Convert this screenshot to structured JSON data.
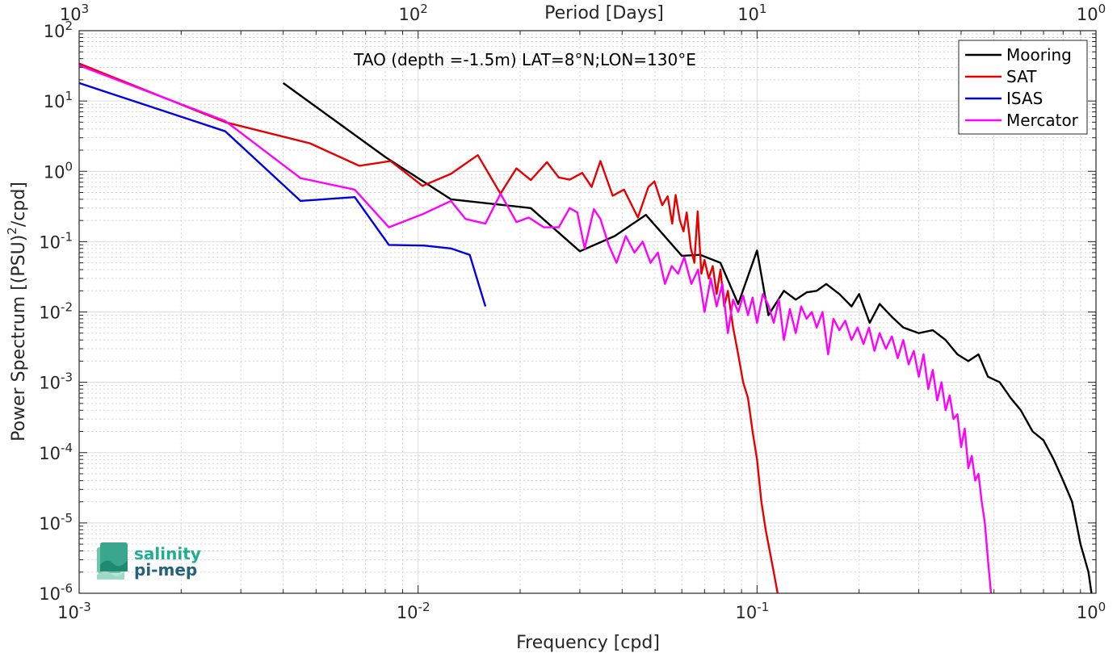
{
  "chart_data": {
    "type": "line",
    "title": "TAO (depth =-1.5m) LAT=8°N;LON=130°E",
    "xlabel": "Frequency [cpd]",
    "ylabel_main": "Power Spectrum [(PSU)",
    "ylabel_sup": "2",
    "ylabel_tail": "/cpd]",
    "top_xlabel": "Period [Days]",
    "x_scale": "log",
    "y_scale": "log",
    "xlim": [
      0.001,
      1
    ],
    "ylim": [
      1e-06,
      100
    ],
    "grid": true,
    "legend_position": "top-right",
    "x_ticks": [
      {
        "value": 0.001,
        "base": "10",
        "exp": "-3"
      },
      {
        "value": 0.01,
        "base": "10",
        "exp": "-2"
      },
      {
        "value": 0.1,
        "base": "10",
        "exp": "-1"
      },
      {
        "value": 1,
        "base": "10",
        "exp": "0"
      }
    ],
    "top_ticks": [
      {
        "value": 0.001,
        "base": "10",
        "exp": "3"
      },
      {
        "value": 0.01,
        "base": "10",
        "exp": "2"
      },
      {
        "value": 0.1,
        "base": "10",
        "exp": "1"
      },
      {
        "value": 1,
        "base": "10",
        "exp": "0"
      }
    ],
    "y_ticks": [
      {
        "value": 100,
        "base": "10",
        "exp": "2"
      },
      {
        "value": 10,
        "base": "10",
        "exp": "1"
      },
      {
        "value": 1,
        "base": "10",
        "exp": "0"
      },
      {
        "value": 0.1,
        "base": "10",
        "exp": "-1"
      },
      {
        "value": 0.01,
        "base": "10",
        "exp": "-2"
      },
      {
        "value": 0.001,
        "base": "10",
        "exp": "-3"
      },
      {
        "value": 0.0001,
        "base": "10",
        "exp": "-4"
      },
      {
        "value": 1e-05,
        "base": "10",
        "exp": "-5"
      },
      {
        "value": 1e-06,
        "base": "10",
        "exp": "-6"
      }
    ],
    "series": [
      {
        "name": "Mooring",
        "color": "#000000",
        "points": [
          [
            0.004,
            18
          ],
          [
            0.008,
            1.6
          ],
          [
            0.0125,
            0.4
          ],
          [
            0.0215,
            0.3
          ],
          [
            0.03,
            0.073
          ],
          [
            0.038,
            0.12
          ],
          [
            0.047,
            0.24
          ],
          [
            0.06,
            0.063
          ],
          [
            0.068,
            0.065
          ],
          [
            0.078,
            0.05
          ],
          [
            0.088,
            0.013
          ],
          [
            0.1,
            0.075
          ],
          [
            0.108,
            0.009
          ],
          [
            0.12,
            0.02
          ],
          [
            0.13,
            0.015
          ],
          [
            0.14,
            0.019
          ],
          [
            0.15,
            0.02
          ],
          [
            0.16,
            0.025
          ],
          [
            0.175,
            0.018
          ],
          [
            0.19,
            0.012
          ],
          [
            0.2,
            0.018
          ],
          [
            0.215,
            0.007
          ],
          [
            0.23,
            0.013
          ],
          [
            0.25,
            0.0085
          ],
          [
            0.27,
            0.006
          ],
          [
            0.3,
            0.005
          ],
          [
            0.33,
            0.0055
          ],
          [
            0.36,
            0.004
          ],
          [
            0.39,
            0.0025
          ],
          [
            0.42,
            0.002
          ],
          [
            0.45,
            0.0025
          ],
          [
            0.48,
            0.0012
          ],
          [
            0.52,
            0.001
          ],
          [
            0.56,
            0.0006
          ],
          [
            0.6,
            0.0004
          ],
          [
            0.65,
            0.0002
          ],
          [
            0.7,
            0.00015
          ],
          [
            0.75,
            8e-05
          ],
          [
            0.8,
            4e-05
          ],
          [
            0.85,
            2e-05
          ],
          [
            0.9,
            5e-06
          ],
          [
            0.95,
            2e-06
          ],
          [
            0.97,
            1e-06
          ]
        ]
      },
      {
        "name": "SAT",
        "color": "#e60000",
        "points": [
          [
            0.001,
            34
          ],
          [
            0.0027,
            5
          ],
          [
            0.0048,
            2.5
          ],
          [
            0.0067,
            1.2
          ],
          [
            0.0083,
            1.4
          ],
          [
            0.0103,
            0.62
          ],
          [
            0.0125,
            0.92
          ],
          [
            0.015,
            1.7
          ],
          [
            0.0175,
            0.48
          ],
          [
            0.0195,
            1.1
          ],
          [
            0.0215,
            0.75
          ],
          [
            0.024,
            1.35
          ],
          [
            0.026,
            0.82
          ],
          [
            0.028,
            0.76
          ],
          [
            0.0305,
            0.95
          ],
          [
            0.0325,
            0.6
          ],
          [
            0.0345,
            1.4
          ],
          [
            0.0375,
            0.45
          ],
          [
            0.0405,
            0.55
          ],
          [
            0.0445,
            0.22
          ],
          [
            0.0478,
            0.6
          ],
          [
            0.0498,
            0.72
          ],
          [
            0.0525,
            0.33
          ],
          [
            0.0545,
            0.44
          ],
          [
            0.0562,
            0.18
          ],
          [
            0.0575,
            0.46
          ],
          [
            0.0592,
            0.2
          ],
          [
            0.0607,
            0.14
          ],
          [
            0.062,
            0.26
          ],
          [
            0.0638,
            0.08
          ],
          [
            0.0653,
            0.05
          ],
          [
            0.0668,
            0.27
          ],
          [
            0.0685,
            0.035
          ],
          [
            0.07,
            0.055
          ],
          [
            0.072,
            0.03
          ],
          [
            0.074,
            0.045
          ],
          [
            0.076,
            0.018
          ],
          [
            0.078,
            0.04
          ],
          [
            0.08,
            0.012
          ],
          [
            0.082,
            0.02
          ],
          [
            0.085,
            0.006
          ],
          [
            0.088,
            0.0025
          ],
          [
            0.091,
            0.001
          ],
          [
            0.094,
            0.0006
          ],
          [
            0.097,
            0.0002
          ],
          [
            0.1,
            8e-05
          ],
          [
            0.103,
            2e-05
          ],
          [
            0.106,
            8e-06
          ],
          [
            0.109,
            4e-06
          ],
          [
            0.112,
            2e-06
          ],
          [
            0.115,
            1e-06
          ]
        ]
      },
      {
        "name": "ISAS",
        "color": "#0000e6",
        "points": [
          [
            0.001,
            18
          ],
          [
            0.0027,
            3.7
          ],
          [
            0.0045,
            0.38
          ],
          [
            0.0065,
            0.43
          ],
          [
            0.0082,
            0.09
          ],
          [
            0.0104,
            0.088
          ],
          [
            0.0125,
            0.08
          ],
          [
            0.0142,
            0.065
          ],
          [
            0.0158,
            0.012
          ]
        ]
      },
      {
        "name": "Mercator",
        "color": "#ff00ff",
        "points": [
          [
            0.001,
            32
          ],
          [
            0.0027,
            5.2
          ],
          [
            0.0045,
            0.8
          ],
          [
            0.0065,
            0.55
          ],
          [
            0.0082,
            0.16
          ],
          [
            0.0104,
            0.25
          ],
          [
            0.0125,
            0.38
          ],
          [
            0.0138,
            0.21
          ],
          [
            0.0158,
            0.18
          ],
          [
            0.0175,
            0.48
          ],
          [
            0.0195,
            0.19
          ],
          [
            0.0212,
            0.22
          ],
          [
            0.0235,
            0.16
          ],
          [
            0.026,
            0.16
          ],
          [
            0.028,
            0.3
          ],
          [
            0.0295,
            0.26
          ],
          [
            0.031,
            0.08
          ],
          [
            0.033,
            0.29
          ],
          [
            0.0345,
            0.21
          ],
          [
            0.0365,
            0.09
          ],
          [
            0.0385,
            0.05
          ],
          [
            0.041,
            0.12
          ],
          [
            0.0435,
            0.07
          ],
          [
            0.046,
            0.1
          ],
          [
            0.0485,
            0.05
          ],
          [
            0.051,
            0.07
          ],
          [
            0.0535,
            0.025
          ],
          [
            0.056,
            0.045
          ],
          [
            0.0585,
            0.035
          ],
          [
            0.061,
            0.06
          ],
          [
            0.064,
            0.025
          ],
          [
            0.067,
            0.04
          ],
          [
            0.07,
            0.01
          ],
          [
            0.073,
            0.03
          ],
          [
            0.076,
            0.012
          ],
          [
            0.079,
            0.025
          ],
          [
            0.082,
            0.005
          ],
          [
            0.085,
            0.015
          ],
          [
            0.088,
            0.01
          ],
          [
            0.091,
            0.017
          ],
          [
            0.094,
            0.009
          ],
          [
            0.097,
            0.016
          ],
          [
            0.1,
            0.007
          ],
          [
            0.104,
            0.018
          ],
          [
            0.108,
            0.0125
          ],
          [
            0.112,
            0.007
          ],
          [
            0.116,
            0.015
          ],
          [
            0.12,
            0.004
          ],
          [
            0.125,
            0.011
          ],
          [
            0.13,
            0.005
          ],
          [
            0.135,
            0.012
          ],
          [
            0.14,
            0.008
          ],
          [
            0.145,
            0.01
          ],
          [
            0.15,
            0.006
          ],
          [
            0.156,
            0.01
          ],
          [
            0.162,
            0.0025
          ],
          [
            0.168,
            0.008
          ],
          [
            0.175,
            0.0055
          ],
          [
            0.182,
            0.0075
          ],
          [
            0.19,
            0.004
          ],
          [
            0.198,
            0.006
          ],
          [
            0.206,
            0.0035
          ],
          [
            0.214,
            0.006
          ],
          [
            0.222,
            0.0028
          ],
          [
            0.23,
            0.005
          ],
          [
            0.24,
            0.003
          ],
          [
            0.25,
            0.0045
          ],
          [
            0.26,
            0.0022
          ],
          [
            0.27,
            0.004
          ],
          [
            0.28,
            0.0018
          ],
          [
            0.29,
            0.0028
          ],
          [
            0.3,
            0.0012
          ],
          [
            0.31,
            0.0025
          ],
          [
            0.32,
            0.0008
          ],
          [
            0.33,
            0.0015
          ],
          [
            0.34,
            0.00055
          ],
          [
            0.35,
            0.001
          ],
          [
            0.36,
            0.0004
          ],
          [
            0.37,
            0.00065
          ],
          [
            0.38,
            0.0003
          ],
          [
            0.39,
            0.00035
          ],
          [
            0.4,
            0.00012
          ],
          [
            0.41,
            0.00022
          ],
          [
            0.42,
            6e-05
          ],
          [
            0.43,
            9e-05
          ],
          [
            0.44,
            4e-05
          ],
          [
            0.45,
            5e-05
          ],
          [
            0.46,
            2e-05
          ],
          [
            0.47,
            1e-05
          ],
          [
            0.48,
            3e-06
          ],
          [
            0.49,
            1e-06
          ]
        ]
      }
    ]
  },
  "logo": {
    "line1": "salinity",
    "line2": "pi-mep"
  }
}
